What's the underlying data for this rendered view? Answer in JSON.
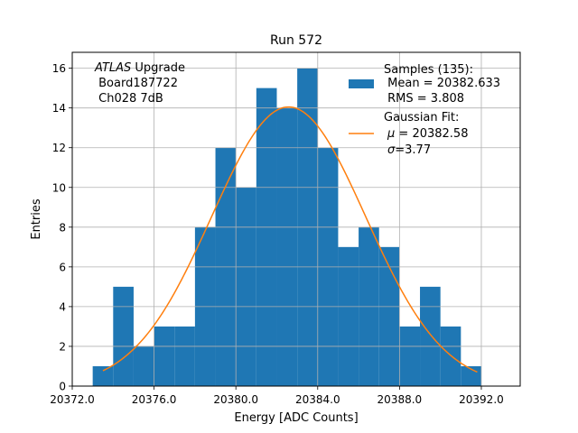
{
  "chart_data": {
    "type": "bar",
    "title": "Run 572",
    "xlabel": "Energy [ADC Counts]",
    "ylabel": "Entries",
    "xlim": [
      20372.0,
      20393.9
    ],
    "ylim": [
      0,
      16.8
    ],
    "grid": true,
    "xticks": [
      20372.0,
      20376.0,
      20380.0,
      20384.0,
      20388.0,
      20392.0
    ],
    "xtick_labels": [
      "20372.0",
      "20376.0",
      "20380.0",
      "20384.0",
      "20388.0",
      "20392.0"
    ],
    "yticks": [
      0,
      2,
      4,
      6,
      8,
      10,
      12,
      14,
      16
    ],
    "ytick_labels": [
      "0",
      "2",
      "4",
      "6",
      "8",
      "10",
      "12",
      "14",
      "16"
    ],
    "histogram": {
      "bin_edges": [
        20373,
        20374,
        20375,
        20376,
        20377,
        20378,
        20379,
        20380,
        20381,
        20382,
        20383,
        20384,
        20385,
        20386,
        20387,
        20388,
        20389,
        20390,
        20391,
        20392
      ],
      "counts": [
        1,
        5,
        2,
        3,
        3,
        8,
        12,
        10,
        15,
        14,
        16,
        12,
        7,
        8,
        7,
        3,
        5,
        3,
        1
      ],
      "color": "#1f77b4"
    },
    "fit": {
      "name": "Gaussian Fit",
      "mu": 20382.58,
      "sigma": 3.77,
      "amplitude": 14.05,
      "x_range": [
        20373.5,
        20391.8
      ],
      "color": "#ff7f0e"
    },
    "annotation": {
      "italic": "ATLAS",
      "line1_rest": " Upgrade",
      "line2": " Board187722",
      "line3": " Ch028 7dB"
    },
    "legend": {
      "position": "top-right",
      "samples": {
        "line1": "Samples (135):",
        "line2": " Mean = 20382.633",
        "line3": " RMS = 3.808"
      },
      "fit": {
        "line1": "Gaussian Fit:",
        "mu_symbol": "μ",
        "mu_rest": " = 20382.58",
        "sigma_symbol": "σ",
        "sigma_rest": "=3.77"
      }
    }
  }
}
